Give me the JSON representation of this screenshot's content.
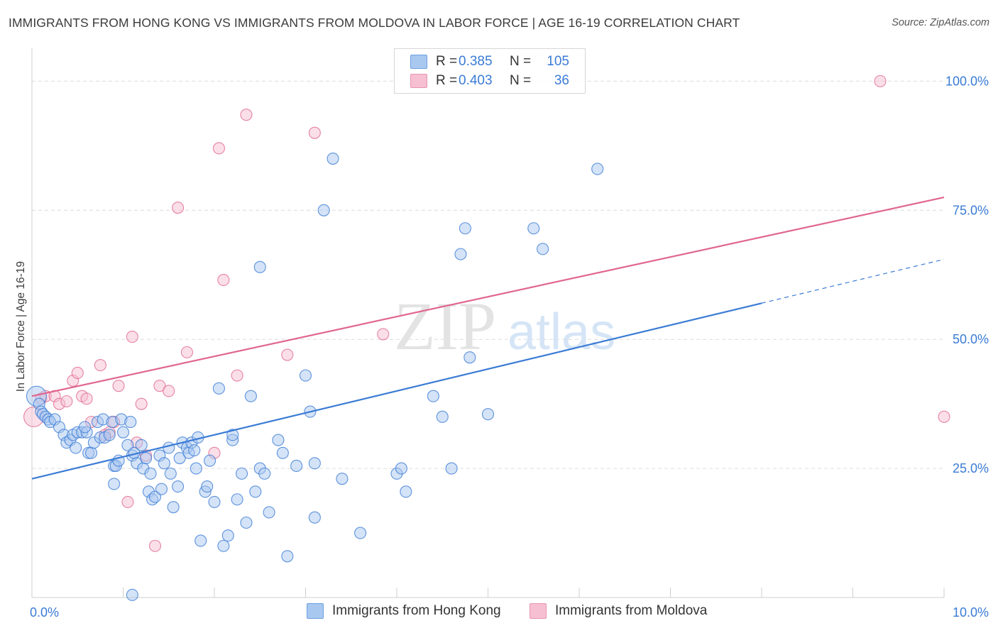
{
  "header": {
    "title": "IMMIGRANTS FROM HONG KONG VS IMMIGRANTS FROM MOLDOVA IN LABOR FORCE | AGE 16-19 CORRELATION CHART",
    "source": "Source: ZipAtlas.com"
  },
  "legend": {
    "r_label": "R =",
    "n_label": "N =",
    "rows": [
      {
        "r": "0.385",
        "n": "105",
        "color": "#a9c8f0",
        "border": "#6b9fe0"
      },
      {
        "r": "0.403",
        "n": "36",
        "color": "#f7bfd2",
        "border": "#e895b3"
      }
    ]
  },
  "watermark": {
    "zip": "ZIP",
    "atlas": "atlas"
  },
  "chart_data": {
    "type": "scatter",
    "title": "IMMIGRANTS FROM HONG KONG VS IMMIGRANTS FROM MOLDOVA IN LABOR FORCE | AGE 16-19 CORRELATION CHART",
    "xlabel": "",
    "ylabel": "In Labor Force | Age 16-19",
    "xlim": [
      0,
      10
    ],
    "ylim": [
      0,
      105
    ],
    "x_tick_labels": {
      "left": "0.0%",
      "right": "10.0%"
    },
    "y_ticks": [
      {
        "value": 25,
        "label": "25.0%"
      },
      {
        "value": 50,
        "label": "50.0%"
      },
      {
        "value": 75,
        "label": "75.0%"
      },
      {
        "value": 100,
        "label": "100.0%"
      }
    ],
    "series": [
      {
        "name": "Immigrants from Hong Kong",
        "color": "#3a7bd5",
        "fill": "#a9c8f0",
        "r": 0.385,
        "n": 105,
        "trend": {
          "x0": 0,
          "y0": 23,
          "x1": 8.0,
          "y1": 57,
          "dash_to_x": 10,
          "dash_to_y": 65.5
        },
        "points": [
          [
            0.05,
            39
          ],
          [
            0.08,
            37.5
          ],
          [
            0.1,
            36
          ],
          [
            0.12,
            35.5
          ],
          [
            0.15,
            35
          ],
          [
            0.18,
            34.5
          ],
          [
            0.2,
            34
          ],
          [
            0.25,
            34.5
          ],
          [
            0.3,
            33
          ],
          [
            0.35,
            31.5
          ],
          [
            0.38,
            30
          ],
          [
            0.42,
            30.5
          ],
          [
            0.45,
            31.5
          ],
          [
            0.48,
            29
          ],
          [
            0.5,
            32
          ],
          [
            0.55,
            32
          ],
          [
            0.6,
            32
          ],
          [
            0.62,
            28
          ],
          [
            0.65,
            28
          ],
          [
            0.68,
            30
          ],
          [
            0.72,
            34
          ],
          [
            0.75,
            31
          ],
          [
            0.78,
            34.5
          ],
          [
            0.8,
            31
          ],
          [
            0.85,
            31.5
          ],
          [
            0.88,
            34
          ],
          [
            0.9,
            25.5
          ],
          [
            0.92,
            25.5
          ],
          [
            0.95,
            26.5
          ],
          [
            0.98,
            34.5
          ],
          [
            1.0,
            32
          ],
          [
            1.05,
            29.5
          ],
          [
            1.08,
            34
          ],
          [
            1.1,
            27.5
          ],
          [
            1.12,
            28
          ],
          [
            1.15,
            26
          ],
          [
            1.2,
            29.5
          ],
          [
            1.22,
            25
          ],
          [
            1.25,
            27
          ],
          [
            1.28,
            20.5
          ],
          [
            1.3,
            24
          ],
          [
            1.32,
            19
          ],
          [
            1.35,
            19.5
          ],
          [
            1.4,
            27.5
          ],
          [
            1.42,
            21
          ],
          [
            1.45,
            26
          ],
          [
            1.5,
            29
          ],
          [
            1.52,
            24
          ],
          [
            1.55,
            17.5
          ],
          [
            1.6,
            21.5
          ],
          [
            1.62,
            27
          ],
          [
            1.65,
            30
          ],
          [
            1.7,
            29
          ],
          [
            1.72,
            28
          ],
          [
            1.75,
            30
          ],
          [
            1.8,
            25
          ],
          [
            1.82,
            31
          ],
          [
            1.85,
            11
          ],
          [
            1.9,
            20.5
          ],
          [
            1.92,
            21.5
          ],
          [
            1.95,
            26.5
          ],
          [
            2.0,
            18.5
          ],
          [
            2.05,
            40.5
          ],
          [
            2.1,
            10
          ],
          [
            2.15,
            12
          ],
          [
            2.2,
            30.5
          ],
          [
            2.25,
            19
          ],
          [
            2.3,
            24
          ],
          [
            2.35,
            14.5
          ],
          [
            2.4,
            39
          ],
          [
            2.45,
            20.5
          ],
          [
            2.5,
            25
          ],
          [
            2.55,
            24
          ],
          [
            2.6,
            16.5
          ],
          [
            2.7,
            30.5
          ],
          [
            2.75,
            28
          ],
          [
            2.8,
            8
          ],
          [
            2.9,
            25.5
          ],
          [
            3.0,
            43
          ],
          [
            3.05,
            36
          ],
          [
            3.1,
            15.5
          ],
          [
            3.2,
            75
          ],
          [
            3.3,
            85
          ],
          [
            3.6,
            12.5
          ],
          [
            4.0,
            24
          ],
          [
            4.05,
            25
          ],
          [
            4.1,
            20.5
          ],
          [
            4.4,
            39
          ],
          [
            4.5,
            35
          ],
          [
            4.6,
            25
          ],
          [
            4.7,
            66.5
          ],
          [
            4.75,
            71.5
          ],
          [
            4.8,
            46.5
          ],
          [
            5.0,
            35.5
          ],
          [
            5.5,
            71.5
          ],
          [
            5.6,
            67.5
          ],
          [
            6.2,
            83
          ],
          [
            1.1,
            0.5
          ],
          [
            0.9,
            22
          ],
          [
            3.1,
            26
          ],
          [
            2.5,
            64
          ],
          [
            1.78,
            28.5
          ],
          [
            3.4,
            23
          ],
          [
            2.2,
            31.5
          ],
          [
            0.58,
            33
          ]
        ]
      },
      {
        "name": "Immigrants from Moldova",
        "color": "#e0668f",
        "fill": "#f7bfd2",
        "r": 0.403,
        "n": 36,
        "trend": {
          "x0": 0,
          "y0": 39,
          "x1": 10,
          "y1": 77.5
        },
        "points": [
          [
            0.02,
            35
          ],
          [
            0.1,
            38.5
          ],
          [
            0.15,
            39
          ],
          [
            0.25,
            39
          ],
          [
            0.3,
            37.5
          ],
          [
            0.38,
            38
          ],
          [
            0.45,
            42
          ],
          [
            0.5,
            43.5
          ],
          [
            0.55,
            39
          ],
          [
            0.6,
            38.5
          ],
          [
            0.65,
            34
          ],
          [
            0.75,
            45
          ],
          [
            0.8,
            31.5
          ],
          [
            0.85,
            32
          ],
          [
            0.9,
            34
          ],
          [
            0.95,
            41
          ],
          [
            1.05,
            18.5
          ],
          [
            1.1,
            50.5
          ],
          [
            1.15,
            30
          ],
          [
            1.2,
            37.5
          ],
          [
            1.25,
            27.5
          ],
          [
            1.35,
            10
          ],
          [
            1.4,
            41
          ],
          [
            1.5,
            40
          ],
          [
            1.6,
            75.5
          ],
          [
            1.7,
            47.5
          ],
          [
            2.0,
            28
          ],
          [
            2.05,
            87
          ],
          [
            2.1,
            61.5
          ],
          [
            2.25,
            43
          ],
          [
            2.35,
            93.5
          ],
          [
            2.8,
            47
          ],
          [
            3.1,
            90
          ],
          [
            3.85,
            51
          ],
          [
            9.3,
            100
          ],
          [
            10.0,
            35
          ]
        ]
      }
    ]
  },
  "bottom_legend": {
    "items": [
      {
        "label": "Immigrants from Hong Kong",
        "color": "#a9c8f0",
        "border": "#6b9fe0"
      },
      {
        "label": "Immigrants from Moldova",
        "color": "#f7bfd2",
        "border": "#e895b3"
      }
    ]
  }
}
